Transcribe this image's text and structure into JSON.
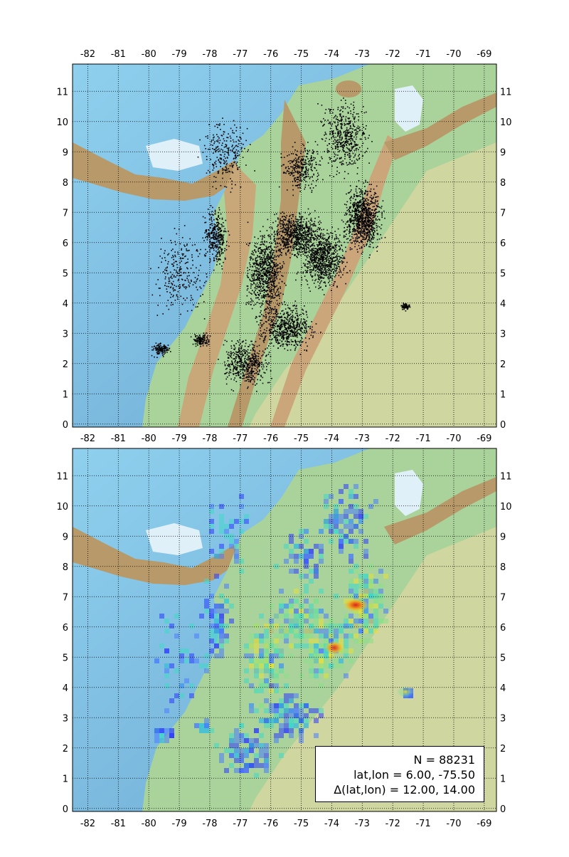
{
  "map": {
    "longitude_ticks": [
      "-82",
      "-81",
      "-80",
      "-79",
      "-78",
      "-77",
      "-76",
      "-75",
      "-74",
      "-73",
      "-72",
      "-71",
      "-70",
      "-69"
    ],
    "latitude_ticks": [
      "0",
      "1",
      "2",
      "3",
      "4",
      "5",
      "6",
      "7",
      "8",
      "9",
      "10",
      "11"
    ],
    "lon_range": [
      -82.5,
      -68.6
    ],
    "lat_range": [
      -0.1,
      11.9
    ],
    "colors": {
      "ocean": "#7ec8e8",
      "deep_ocean": "#6fa8cf",
      "lake": "#dff0f8",
      "lowland": "#a9d39a",
      "plains": "#cfd6a0",
      "mountains": "#b89a6a",
      "highlands": "#caa67a",
      "event_points": "#000000",
      "density_low": "#2b3bff",
      "density_mid": "#3fd8c8",
      "density_high": "#e8e03a",
      "density_peak": "#d9241b",
      "grid": "#000000"
    }
  },
  "panels": [
    {
      "name": "earthquake-scatter-map",
      "style": "scatter points"
    },
    {
      "name": "earthquake-density-map",
      "style": "density contours"
    }
  ],
  "legend": {
    "n_label": "N = 88231",
    "center_label": "lat,lon = 6.00, -75.50",
    "delta_label": "Δ(lat,lon) = 12.00, 14.00"
  }
}
